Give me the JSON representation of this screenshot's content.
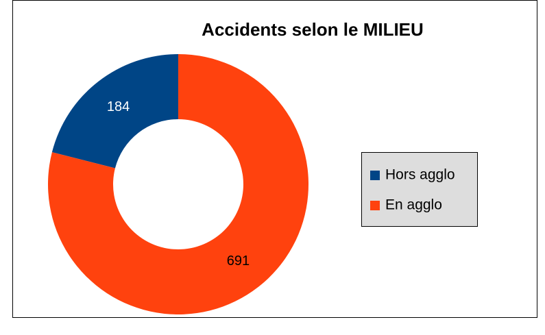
{
  "chart_data": {
    "type": "donut",
    "title": "Accidents selon le MILIEU",
    "categories": [
      "Hors agglo",
      "En agglo"
    ],
    "values": [
      184,
      691
    ],
    "colors": [
      "#004586",
      "#ff420e"
    ],
    "legend": "right"
  }
}
